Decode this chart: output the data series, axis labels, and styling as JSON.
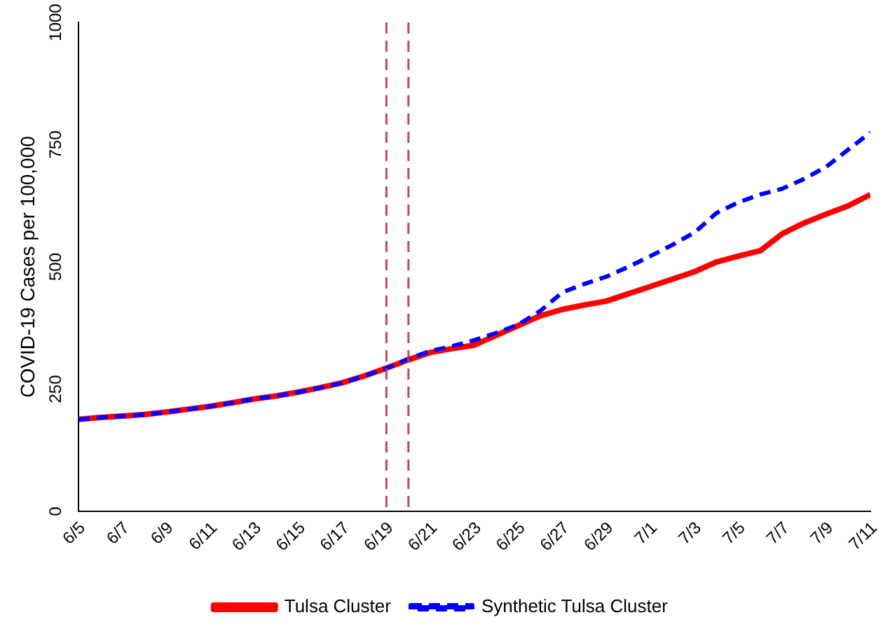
{
  "chart_data": {
    "type": "line",
    "ylabel": "COVID-19 Cases per 100,000",
    "xlim": [
      "--06-05",
      "--07-11"
    ],
    "xticks": [
      {
        "value": "--06-05",
        "label": "6/5"
      },
      {
        "value": "--06-07",
        "label": "6/7"
      },
      {
        "value": "--06-09",
        "label": "6/9"
      },
      {
        "value": "--06-11",
        "label": "6/11"
      },
      {
        "value": "--06-13",
        "label": "6/13"
      },
      {
        "value": "--06-15",
        "label": "6/15"
      },
      {
        "value": "--06-17",
        "label": "6/17"
      },
      {
        "value": "--06-19",
        "label": "6/19"
      },
      {
        "value": "--06-21",
        "label": "6/21"
      },
      {
        "value": "--06-23",
        "label": "6/23"
      },
      {
        "value": "--06-25",
        "label": "6/25"
      },
      {
        "value": "--06-27",
        "label": "6/27"
      },
      {
        "value": "--06-29",
        "label": "6/29"
      },
      {
        "value": "--07-01",
        "label": "7/1"
      },
      {
        "value": "--07-03",
        "label": "7/3"
      },
      {
        "value": "--07-05",
        "label": "7/5"
      },
      {
        "value": "--07-07",
        "label": "7/7"
      },
      {
        "value": "--07-09",
        "label": "7/9"
      },
      {
        "value": "--07-11",
        "label": "7/11"
      }
    ],
    "x": [
      "--06-05",
      "--06-06",
      "--06-07",
      "--06-08",
      "--06-09",
      "--06-10",
      "--06-11",
      "--06-12",
      "--06-13",
      "--06-14",
      "--06-15",
      "--06-16",
      "--06-17",
      "--06-18",
      "--06-19",
      "--06-20",
      "--06-21",
      "--06-22",
      "--06-23",
      "--06-24",
      "--06-25",
      "--06-26",
      "--06-27",
      "--06-28",
      "--06-29",
      "--06-30",
      "--07-01",
      "--07-02",
      "--07-03",
      "--07-04",
      "--07-05",
      "--07-06",
      "--07-07",
      "--07-08",
      "--07-09",
      "--07-10",
      "--07-11"
    ],
    "ylim": [
      0,
      1000
    ],
    "yticks": [
      0,
      250,
      500,
      750,
      1000
    ],
    "series": [
      {
        "name": "Tulsa Cluster",
        "color": "#ff0000",
        "line_style": "solid",
        "values": [
          188,
          192,
          195,
          198,
          203,
          209,
          215,
          222,
          230,
          236,
          244,
          253,
          263,
          277,
          293,
          310,
          325,
          333,
          340,
          360,
          380,
          400,
          413,
          422,
          430,
          445,
          460,
          475,
          490,
          510,
          522,
          533,
          568,
          590,
          608,
          625,
          648
        ]
      },
      {
        "name": "Synthetic Tulsa Cluster",
        "color": "#0000ff",
        "line_style": "dashed",
        "values": [
          188,
          192,
          195,
          198,
          203,
          209,
          215,
          222,
          230,
          236,
          244,
          253,
          263,
          277,
          293,
          312,
          328,
          338,
          350,
          365,
          382,
          410,
          448,
          465,
          480,
          500,
          522,
          545,
          570,
          610,
          632,
          648,
          660,
          680,
          705,
          740,
          775
        ]
      }
    ],
    "ref_lines": [
      {
        "axis": "x",
        "value": "--06-19",
        "color": "#d0405a",
        "line_style": "dashed"
      },
      {
        "axis": "x",
        "value": "--06-20",
        "color": "#d0405a",
        "line_style": "dashed"
      }
    ],
    "grid": false,
    "legend": "bottom",
    "marker": "none"
  }
}
